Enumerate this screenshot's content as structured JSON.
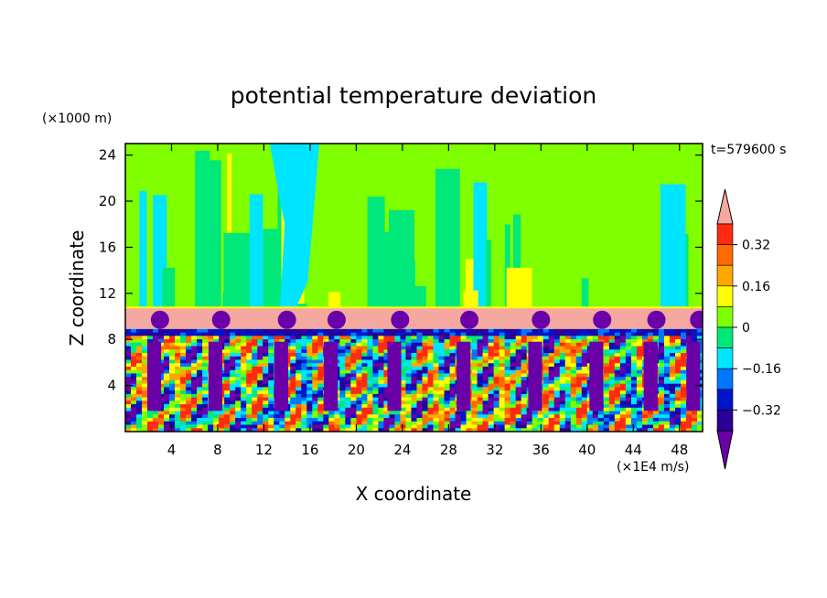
{
  "chart_data": {
    "type": "heatmap",
    "title": "potential temperature deviation",
    "xlabel": "X coordinate",
    "ylabel": "Z coordinate",
    "x_unit": "(×1E4 m/s)",
    "y_unit": "(×1000 m)",
    "time_label": "t=579600 s",
    "xlim": [
      0,
      50
    ],
    "ylim": [
      0,
      25
    ],
    "x_ticks": [
      "4",
      "8",
      "12",
      "16",
      "20",
      "24",
      "28",
      "32",
      "36",
      "40",
      "44",
      "48"
    ],
    "y_ticks": [
      "4",
      "8",
      "12",
      "16",
      "20",
      "24"
    ],
    "x_tick_values": [
      4,
      8,
      12,
      16,
      20,
      24,
      28,
      32,
      36,
      40,
      44,
      48
    ],
    "y_tick_values": [
      4,
      8,
      12,
      16,
      20,
      24
    ],
    "colorbar": {
      "labels": [
        "0.32",
        "0.16",
        "0",
        "−0.16",
        "−0.32"
      ],
      "label_values": [
        0.32,
        0.16,
        0,
        -0.16,
        -0.32
      ],
      "levels_top_to_bottom": [
        0.4,
        0.32,
        0.24,
        0.16,
        0.08,
        0,
        -0.08,
        -0.16,
        -0.24,
        -0.32,
        -0.4
      ],
      "colors_top_to_bottom": [
        "#f4a8a0",
        "#ff2a10",
        "#ff6a00",
        "#ffa600",
        "#ffff00",
        "#7fff00",
        "#00e87a",
        "#00e5ff",
        "#0077ff",
        "#0015c8",
        "#2a0096",
        "#6a00a8"
      ]
    },
    "regions": [
      {
        "z_from": 10.8,
        "z_to": 25,
        "description_value": "0 to 0.08",
        "color": "#7fff00"
      },
      {
        "z_from": 8.9,
        "z_to": 10.8,
        "description_value": "> 0.40",
        "color": "#f4a8a0"
      },
      {
        "z_from": 0,
        "z_to": 8.9,
        "description_value": "-0.40 to 0.40",
        "color": "mixed"
      }
    ]
  }
}
